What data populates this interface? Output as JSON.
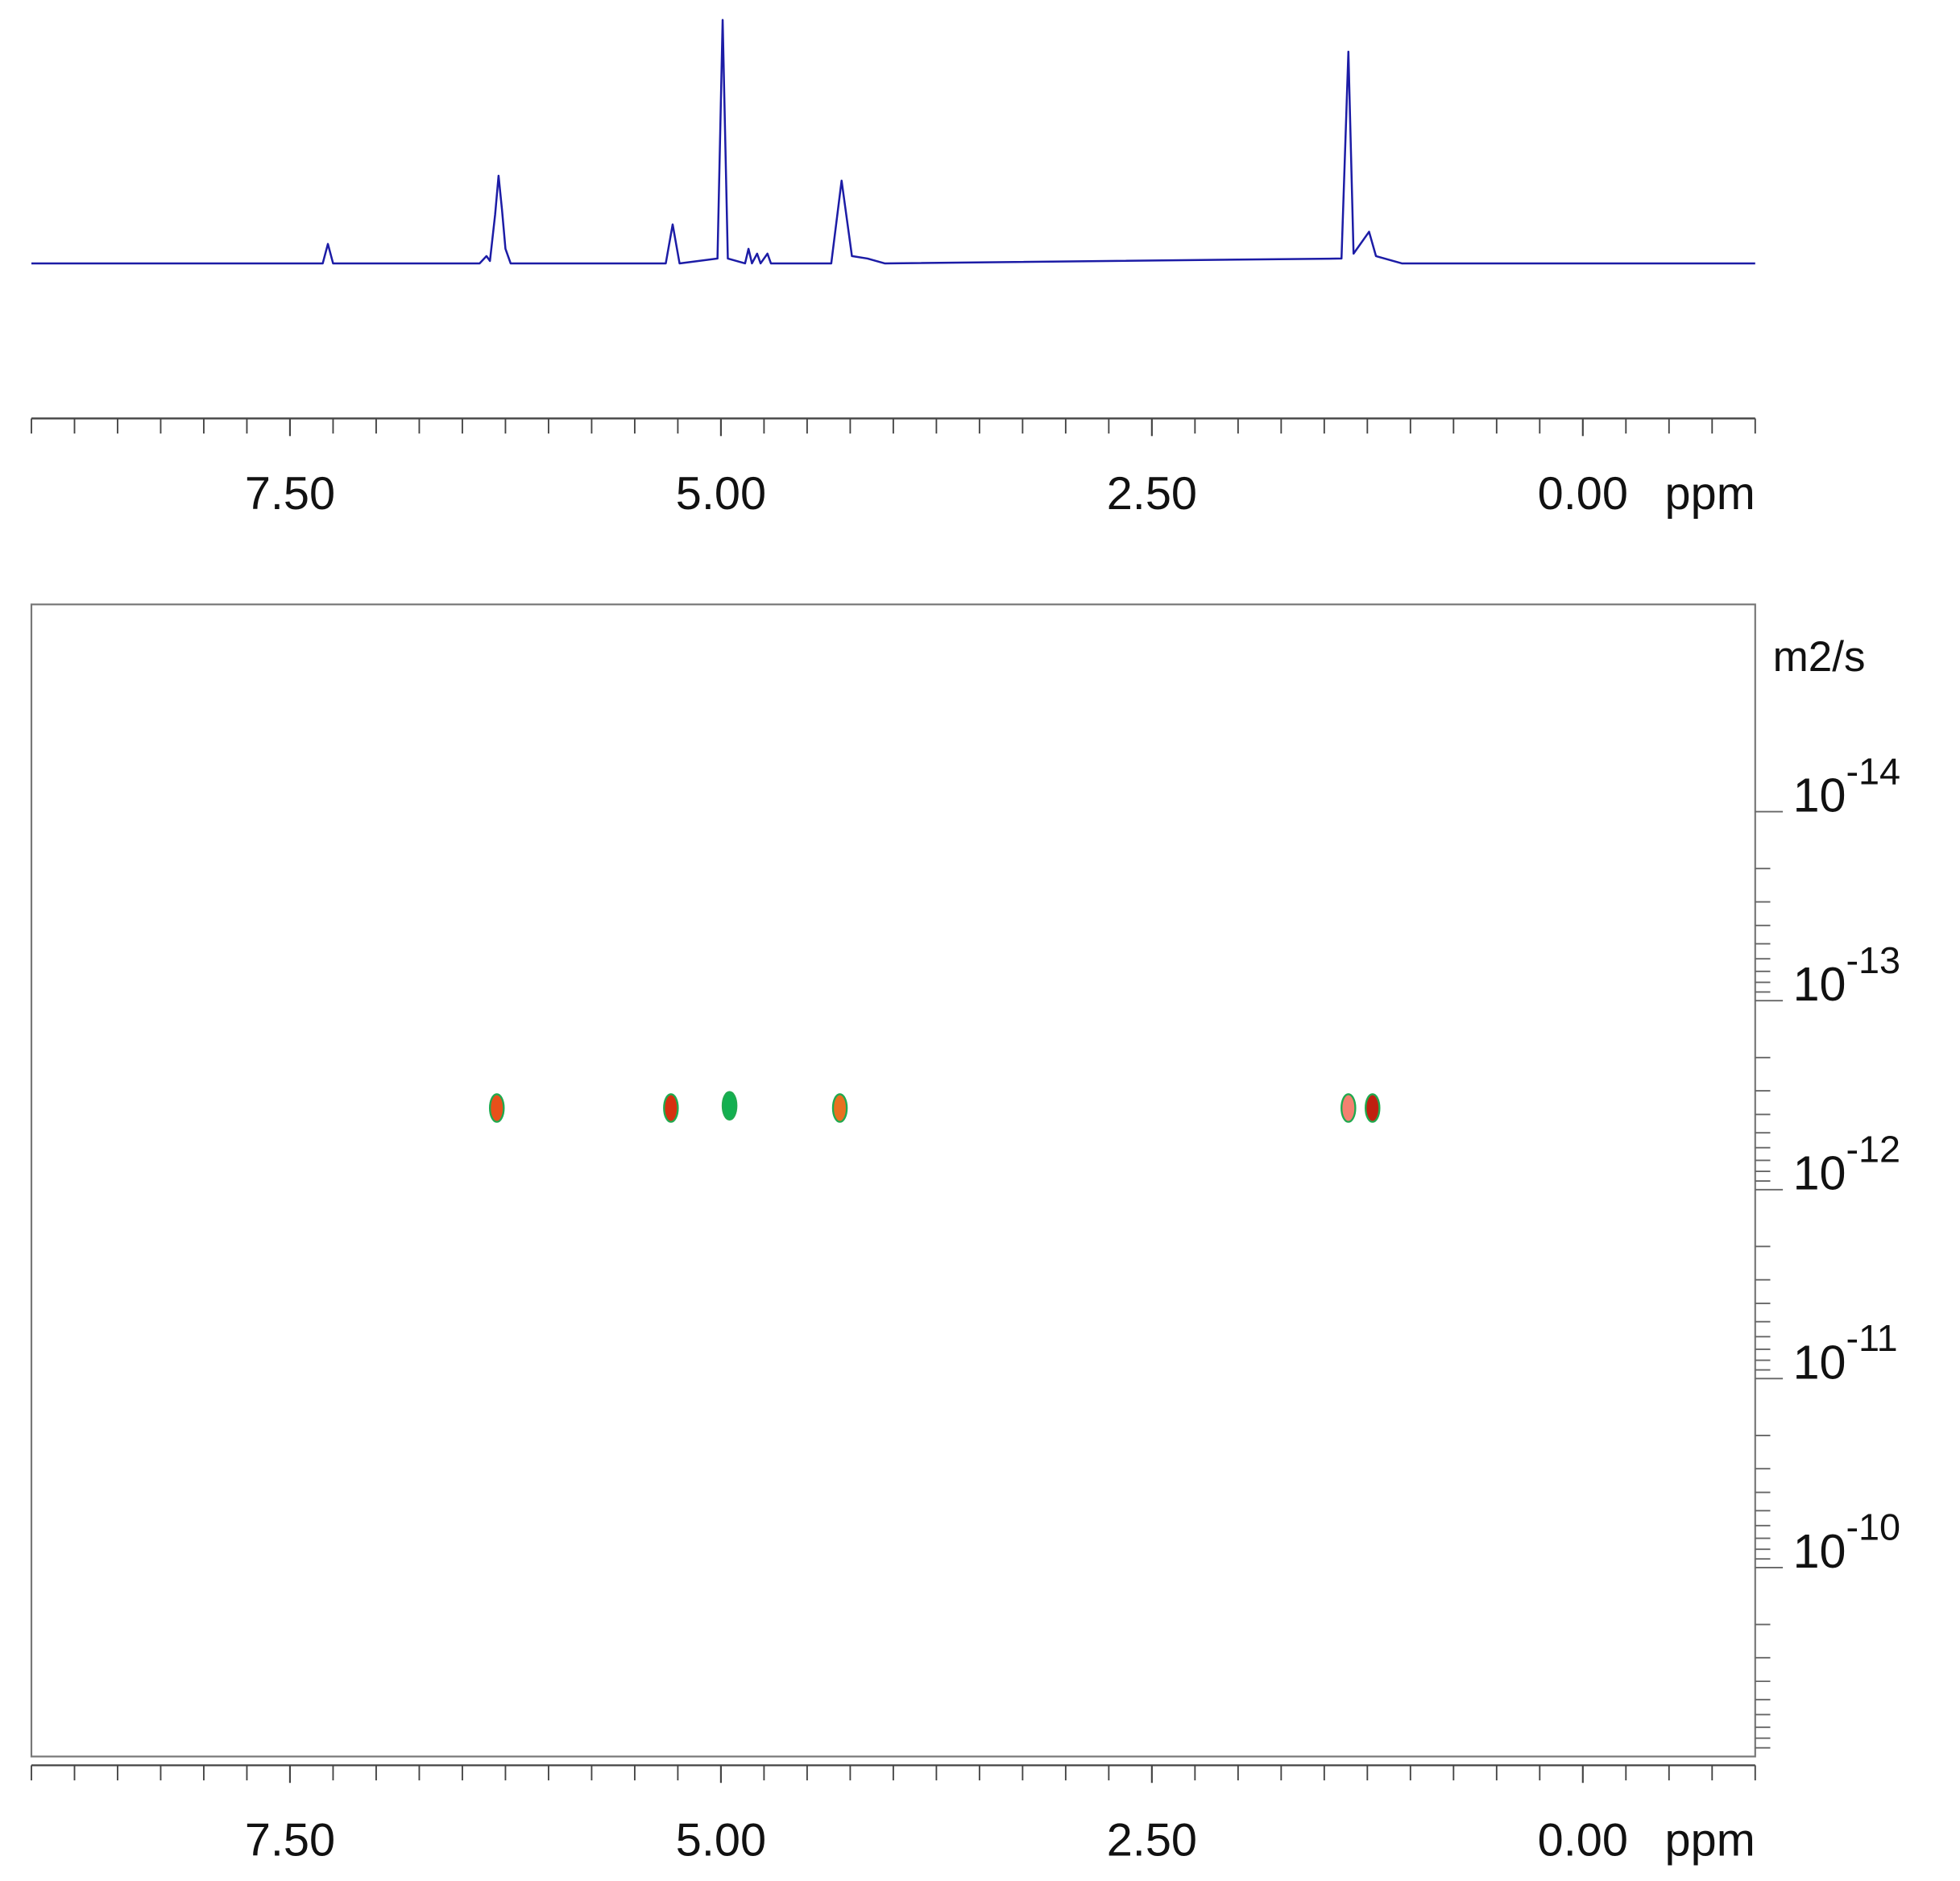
{
  "chart_data": [
    {
      "type": "line",
      "xlim": [
        9.0,
        -1.0
      ],
      "xticks": [
        {
          "value": 7.5,
          "label": "7.50"
        },
        {
          "value": 5,
          "label": "5.00"
        },
        {
          "value": 2.5,
          "label": "2.50"
        },
        {
          "value": 0,
          "label": "0.00"
        }
      ],
      "xminorticks": [
        9,
        8.75,
        8.5,
        8.25,
        8,
        7.75,
        7.25,
        7,
        6.75,
        6.5,
        6.25,
        6,
        5.75,
        5.5,
        5.25,
        4.75,
        4.5,
        4.25,
        4,
        3.75,
        3.5,
        3.25,
        3,
        2.75,
        2.25,
        2,
        1.75,
        1.5,
        1.25,
        1,
        0.75,
        0.5,
        0.25,
        -0.25,
        -0.5,
        -0.75,
        -1
      ],
      "xlabel": "ppm",
      "ylim": [
        -57,
        103
      ],
      "color": "#1c1ca6",
      "x": [
        9.0,
        7.31,
        7.28,
        7.25,
        6.4,
        6.36,
        6.34,
        6.31,
        6.29,
        6.27,
        6.25,
        6.22,
        5.32,
        5.28,
        5.24,
        5.02,
        4.99,
        4.96,
        4.86,
        4.84,
        4.82,
        4.79,
        4.77,
        4.73,
        4.71,
        4.36,
        4.3,
        4.24,
        4.15,
        4.05,
        1.4,
        1.36,
        1.33,
        1.24,
        1.2,
        1.05,
        -1.0
      ],
      "values": [
        0,
        0,
        8,
        0,
        0,
        3,
        1,
        20,
        36,
        22,
        6,
        0,
        0,
        16,
        0,
        2,
        100,
        2,
        0,
        6,
        0,
        4,
        0,
        4,
        0,
        0,
        34,
        3,
        2,
        0,
        2,
        87,
        4,
        13,
        3,
        0,
        0
      ]
    },
    {
      "type": "scatter",
      "xlim": [
        9.0,
        -1.0
      ],
      "xticks": [
        {
          "value": 7.5,
          "label": "7.50"
        },
        {
          "value": 5,
          "label": "5.00"
        },
        {
          "value": 2.5,
          "label": "2.50"
        },
        {
          "value": 0,
          "label": "0.00"
        }
      ],
      "xminorticks": [
        9,
        8.75,
        8.5,
        8.25,
        8,
        7.75,
        7.25,
        7,
        6.75,
        6.5,
        6.25,
        6,
        5.75,
        5.5,
        5.25,
        4.75,
        4.5,
        4.25,
        4,
        3.75,
        3.5,
        3.25,
        3,
        2.75,
        2.25,
        2,
        1.75,
        1.5,
        1.25,
        1,
        0.75,
        0.5,
        0.25,
        -0.25,
        -0.5,
        -0.75,
        -1
      ],
      "xlabel": "ppm",
      "ylabel": "m2/s",
      "ylog": true,
      "ylim": [
        1e-09,
        8e-16
      ],
      "yticks": [
        {
          "value": 1e-14,
          "label": "10",
          "exponent": "-14"
        },
        {
          "value": 1e-13,
          "label": "10",
          "exponent": "-13"
        },
        {
          "value": 1e-12,
          "label": "10",
          "exponent": "-12"
        },
        {
          "value": 1e-11,
          "label": "10",
          "exponent": "-11"
        },
        {
          "value": 1e-10,
          "label": "10",
          "exponent": "-10"
        }
      ],
      "yminorticks": [
        2e-14,
        3e-14,
        4e-14,
        5e-14,
        6e-14,
        7e-14,
        8e-14,
        9e-14,
        2e-13,
        3e-13,
        4e-13,
        5e-13,
        6e-13,
        7e-13,
        8e-13,
        9e-13,
        2e-12,
        3e-12,
        4e-12,
        5e-12,
        6e-12,
        7e-12,
        8e-12,
        9e-12,
        2e-11,
        3e-11,
        4e-11,
        5e-11,
        6e-11,
        7e-11,
        8e-11,
        9e-11,
        2e-10,
        3e-10,
        4e-10,
        5e-10,
        6e-10,
        7e-10,
        8e-10,
        9e-10
      ],
      "x": [
        6.3,
        5.29,
        4.95,
        4.31,
        1.36,
        1.22
      ],
      "values": [
        3.7e-13,
        3.7e-13,
        3.6e-13,
        3.7e-13,
        3.7e-13,
        3.7e-13
      ],
      "colors": [
        "#e8501a",
        "#d63010",
        "#12b050",
        "#e87020",
        "#f48070",
        "#c02010"
      ],
      "edge_color": "#1faa4f"
    }
  ]
}
